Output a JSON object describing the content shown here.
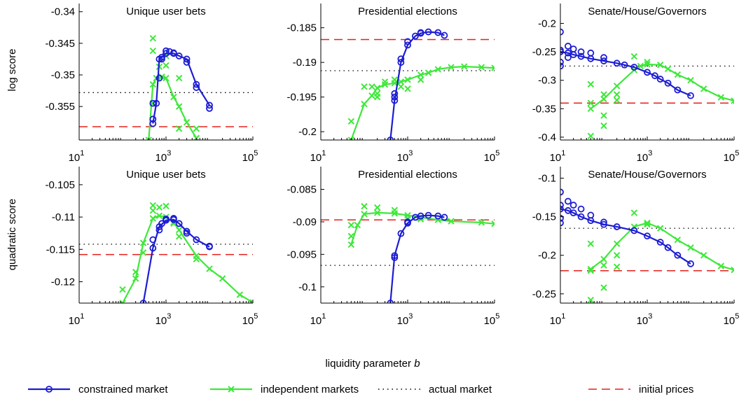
{
  "figure": {
    "ylabels": [
      "log score",
      "quadratic score"
    ],
    "xlabel": {
      "text": "liquidity parameter",
      "variable": "b"
    },
    "legend": {
      "constrained": {
        "label": "constrained market",
        "color": "#1c1cd4",
        "marker": "circle"
      },
      "independent": {
        "label": "independent markets",
        "color": "#3ee83a",
        "marker": "cross"
      },
      "actual": {
        "label": "actual market",
        "color": "#000000",
        "dash": "dotted"
      },
      "initial": {
        "label": "initial prices",
        "color": "#e5201c",
        "dash": "dashed"
      }
    }
  },
  "chart_data": [
    {
      "type": "line",
      "title": "Unique user bets",
      "xscale": "log",
      "xlim": [
        10,
        100000
      ],
      "xticks": [
        {
          "value": 10,
          "base": "10",
          "exponent": "1"
        },
        {
          "value": 1000,
          "base": "10",
          "exponent": "3"
        },
        {
          "value": 100000,
          "base": "10",
          "exponent": "5"
        }
      ],
      "ylim": [
        -0.3603,
        -0.3387
      ],
      "yticks": [
        -0.34,
        -0.345,
        -0.35,
        -0.355
      ],
      "constrained": {
        "x": [
          500,
          600,
          700,
          800,
          1000,
          1500,
          2000,
          3000,
          5000,
          10000
        ],
        "values": [
          -0.3577,
          -0.3545,
          -0.3475,
          -0.3472,
          -0.3466,
          -0.3466,
          -0.347,
          -0.3475,
          -0.3515,
          -0.3548
        ]
      },
      "constrained_runs": {
        "x": [
          500,
          500,
          700,
          800,
          1000,
          1200,
          1500,
          3000,
          5000,
          10000
        ],
        "values": [
          -0.3545,
          -0.357,
          -0.3505,
          -0.3475,
          -0.3462,
          -0.3463,
          -0.3465,
          -0.348,
          -0.352,
          -0.3553
        ]
      },
      "independent": {
        "x": [
          400,
          500,
          600,
          800,
          1000,
          1500,
          2000,
          3000,
          5000
        ],
        "values": [
          -0.3603,
          -0.3515,
          -0.3505,
          -0.3503,
          -0.3505,
          -0.3535,
          -0.355,
          -0.3575,
          -0.36
        ]
      },
      "independent_runs": {
        "x": [
          500,
          500,
          500,
          700,
          1000,
          1000,
          2000,
          2000,
          5000,
          5000
        ],
        "values": [
          -0.3442,
          -0.3462,
          -0.3545,
          -0.3487,
          -0.347,
          -0.3485,
          -0.3505,
          -0.3585,
          -0.3585,
          -0.36
        ]
      },
      "actual": -0.3528,
      "initial": -0.3582
    },
    {
      "type": "line",
      "title": "Presidential elections",
      "xscale": "log",
      "xlim": [
        10,
        100000
      ],
      "xticks": [
        {
          "value": 10,
          "base": "10",
          "exponent": "1"
        },
        {
          "value": 1000,
          "base": "10",
          "exponent": "3"
        },
        {
          "value": 100000,
          "base": "10",
          "exponent": "5"
        }
      ],
      "ylim": [
        -0.2012,
        -0.1815
      ],
      "yticks": [
        -0.185,
        -0.19,
        -0.195,
        -0.2
      ],
      "constrained": {
        "x": [
          400,
          500,
          700,
          1000,
          1500,
          2000,
          3000,
          5000,
          7000
        ],
        "values": [
          -0.2012,
          -0.1955,
          -0.19,
          -0.1875,
          -0.1862,
          -0.1858,
          -0.1856,
          -0.1857,
          -0.1861
        ]
      },
      "constrained_runs": {
        "x": [
          500,
          500,
          700,
          1000,
          2000
        ],
        "values": [
          -0.195,
          -0.1945,
          -0.1895,
          -0.187,
          -0.1857
        ]
      },
      "independent": {
        "x": [
          50,
          100,
          150,
          200,
          300,
          500,
          700,
          1000,
          2000,
          3000,
          5000,
          10000,
          20000,
          50000,
          100000
        ],
        "values": [
          -0.2012,
          -0.196,
          -0.1948,
          -0.1937,
          -0.1932,
          -0.193,
          -0.1928,
          -0.1925,
          -0.1918,
          -0.1915,
          -0.191,
          -0.1907,
          -0.1906,
          -0.1907,
          -0.1908
        ]
      },
      "independent_runs": {
        "x": [
          50,
          100,
          150,
          200,
          200,
          300,
          500,
          700,
          1000,
          2000
        ],
        "values": [
          -0.1985,
          -0.1935,
          -0.1935,
          -0.1945,
          -0.195,
          -0.1928,
          -0.1925,
          -0.1935,
          -0.1938,
          -0.1925
        ]
      },
      "actual": -0.1912,
      "initial": -0.1867
    },
    {
      "type": "line",
      "title": "Senate/House/Governors",
      "xscale": "log",
      "xlim": [
        10,
        100000
      ],
      "xticks": [
        {
          "value": 10,
          "base": "10",
          "exponent": "1"
        },
        {
          "value": 1000,
          "base": "10",
          "exponent": "3"
        },
        {
          "value": 100000,
          "base": "10",
          "exponent": "5"
        }
      ],
      "ylim": [
        -0.405,
        -0.165
      ],
      "yticks": [
        -0.2,
        -0.25,
        -0.3,
        -0.35,
        -0.4
      ],
      "constrained": {
        "x": [
          10,
          15,
          20,
          30,
          50,
          100,
          200,
          300,
          500,
          1000,
          1500,
          2000,
          3000,
          5000,
          10000
        ],
        "values": [
          -0.25,
          -0.252,
          -0.255,
          -0.258,
          -0.262,
          -0.266,
          -0.27,
          -0.273,
          -0.277,
          -0.286,
          -0.292,
          -0.298,
          -0.305,
          -0.317,
          -0.327
        ]
      },
      "constrained_runs": {
        "x": [
          10,
          10,
          10,
          10,
          15,
          15,
          20,
          30,
          50,
          100
        ],
        "values": [
          -0.215,
          -0.247,
          -0.268,
          -0.275,
          -0.24,
          -0.26,
          -0.245,
          -0.25,
          -0.252,
          -0.26
        ]
      },
      "independent": {
        "x": [
          50,
          100,
          200,
          500,
          700,
          1000,
          2000,
          3000,
          5000,
          10000,
          20000,
          50000,
          100000
        ],
        "values": [
          -0.35,
          -0.333,
          -0.31,
          -0.282,
          -0.275,
          -0.272,
          -0.273,
          -0.28,
          -0.29,
          -0.3,
          -0.315,
          -0.33,
          -0.336
        ]
      },
      "independent_runs": {
        "x": [
          50,
          50,
          50,
          100,
          100,
          100,
          200,
          200,
          500,
          1000
        ],
        "values": [
          -0.307,
          -0.34,
          -0.398,
          -0.362,
          -0.38,
          -0.325,
          -0.325,
          -0.335,
          -0.258,
          -0.268
        ]
      },
      "actual": -0.275,
      "initial": -0.34
    },
    {
      "type": "line",
      "title": "Unique user bets",
      "xscale": "log",
      "xlim": [
        10,
        100000
      ],
      "xticks": [
        {
          "value": 10,
          "base": "10",
          "exponent": "1"
        },
        {
          "value": 1000,
          "base": "10",
          "exponent": "3"
        },
        {
          "value": 100000,
          "base": "10",
          "exponent": "5"
        }
      ],
      "ylim": [
        -0.1233,
        -0.1022
      ],
      "yticks": [
        -0.105,
        -0.11,
        -0.115,
        -0.12
      ],
      "constrained": {
        "x": [
          300,
          500,
          700,
          1000,
          1500,
          2000,
          3000,
          5000,
          10000
        ],
        "values": [
          -0.1233,
          -0.1148,
          -0.1115,
          -0.1105,
          -0.1104,
          -0.111,
          -0.1122,
          -0.1135,
          -0.1146
        ]
      },
      "constrained_runs": {
        "x": [
          500,
          700,
          800,
          1000,
          1500,
          3000,
          10000
        ],
        "values": [
          -0.1135,
          -0.112,
          -0.111,
          -0.1103,
          -0.1102,
          -0.1125,
          -0.1145
        ]
      },
      "independent": {
        "x": [
          100,
          200,
          300,
          500,
          700,
          1000,
          1500,
          2000,
          5000,
          10000,
          20000,
          50000,
          100000
        ],
        "values": [
          -0.1233,
          -0.1195,
          -0.114,
          -0.1102,
          -0.1098,
          -0.11,
          -0.1108,
          -0.112,
          -0.116,
          -0.118,
          -0.1195,
          -0.122,
          -0.1232
        ]
      },
      "independent_runs": {
        "x": [
          100,
          200,
          300,
          500,
          500,
          700,
          1000,
          1500,
          2000,
          5000
        ],
        "values": [
          -0.1212,
          -0.1185,
          -0.1155,
          -0.1082,
          -0.109,
          -0.1085,
          -0.1083,
          -0.111,
          -0.113,
          -0.1165
        ]
      },
      "actual": -0.1142,
      "initial": -0.1158
    },
    {
      "type": "line",
      "title": "Presidential elections",
      "xscale": "log",
      "xlim": [
        10,
        100000
      ],
      "xticks": [
        {
          "value": 10,
          "base": "10",
          "exponent": "1"
        },
        {
          "value": 1000,
          "base": "10",
          "exponent": "3"
        },
        {
          "value": 100000,
          "base": "10",
          "exponent": "5"
        }
      ],
      "ylim": [
        -0.1025,
        -0.0815
      ],
      "yticks": [
        -0.085,
        -0.09,
        -0.095,
        -0.1
      ],
      "constrained": {
        "x": [
          400,
          500,
          700,
          1000,
          1500,
          2000,
          3000,
          5000,
          7000
        ],
        "values": [
          -0.1025,
          -0.0952,
          -0.0918,
          -0.0902,
          -0.0893,
          -0.0891,
          -0.089,
          -0.0891,
          -0.0893
        ]
      },
      "constrained_runs": {
        "x": [
          500,
          1000
        ],
        "values": [
          -0.0955,
          -0.09
        ]
      },
      "independent": {
        "x": [
          50,
          70,
          100,
          200,
          500,
          1000,
          2000,
          5000,
          10000,
          50000,
          100000
        ],
        "values": [
          -0.0935,
          -0.0905,
          -0.0888,
          -0.0886,
          -0.0887,
          -0.089,
          -0.0893,
          -0.0897,
          -0.0899,
          -0.0901,
          -0.0903
        ]
      },
      "independent_runs": {
        "x": [
          50,
          50,
          100,
          200,
          500,
          1000,
          2000
        ],
        "values": [
          -0.0922,
          -0.0905,
          -0.0876,
          -0.0878,
          -0.0882,
          -0.0895,
          -0.0896
        ]
      },
      "actual": -0.0967,
      "initial": -0.0897
    },
    {
      "type": "line",
      "title": "Senate/House/Governors",
      "xscale": "log",
      "xlim": [
        10,
        100000
      ],
      "xticks": [
        {
          "value": 10,
          "base": "10",
          "exponent": "1"
        },
        {
          "value": 1000,
          "base": "10",
          "exponent": "3"
        },
        {
          "value": 100000,
          "base": "10",
          "exponent": "5"
        }
      ],
      "ylim": [
        -0.262,
        -0.085
      ],
      "yticks": [
        -0.1,
        -0.15,
        -0.2,
        -0.25
      ],
      "constrained": {
        "x": [
          10,
          15,
          20,
          30,
          50,
          100,
          200,
          500,
          1000,
          2000,
          3000,
          5000,
          10000
        ],
        "values": [
          -0.14,
          -0.142,
          -0.145,
          -0.15,
          -0.155,
          -0.16,
          -0.163,
          -0.168,
          -0.175,
          -0.183,
          -0.19,
          -0.2,
          -0.211
        ]
      },
      "constrained_runs": {
        "x": [
          10,
          10,
          10,
          10,
          15,
          20,
          30,
          50,
          100
        ],
        "values": [
          -0.118,
          -0.135,
          -0.152,
          -0.158,
          -0.13,
          -0.135,
          -0.14,
          -0.148,
          -0.157
        ]
      },
      "independent": {
        "x": [
          50,
          100,
          200,
          500,
          1000,
          2000,
          5000,
          10000,
          20000,
          50000,
          100000
        ],
        "values": [
          -0.218,
          -0.205,
          -0.185,
          -0.163,
          -0.158,
          -0.165,
          -0.18,
          -0.19,
          -0.2,
          -0.214,
          -0.219
        ]
      },
      "independent_runs": {
        "x": [
          50,
          50,
          50,
          100,
          100,
          200,
          200,
          500,
          1000
        ],
        "values": [
          -0.185,
          -0.22,
          -0.258,
          -0.242,
          -0.213,
          -0.2,
          -0.215,
          -0.145,
          -0.16
        ]
      },
      "actual": -0.165,
      "initial": -0.22
    }
  ]
}
